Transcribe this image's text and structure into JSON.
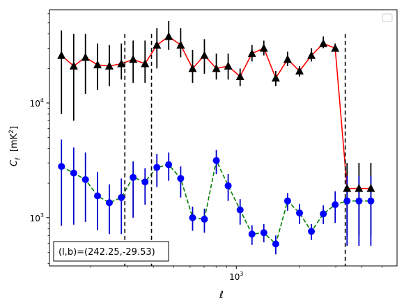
{
  "chart_data": {
    "type": "line",
    "xlabel": "ℓ",
    "ylabel_main": "C",
    "ylabel_sub": "ℓ",
    "ylabel_unit": "[mK",
    "ylabel_unit_sup": "2",
    "ylabel_unit_end": "]",
    "xscale": "log",
    "yscale": "log",
    "xlim": [
      127,
      5900
    ],
    "ylim": [
      380,
      65000
    ],
    "x_ticks": [
      {
        "value": 1000,
        "base": "10",
        "exp": "3"
      }
    ],
    "y_ticks": [
      {
        "value": 1000,
        "base": "10",
        "exp": "3"
      },
      {
        "value": 10000,
        "base": "10",
        "exp": "4"
      }
    ],
    "annotation": "(l,b)=(242.25,-29.53)",
    "legend": "upper right (empty)",
    "vlines": [
      292,
      392,
      3330
    ],
    "vline_range": [
      380,
      40000
    ],
    "series": [
      {
        "color": "#ff0000",
        "marker_color": "#000000",
        "errorbar_color": "#000000",
        "linestyle": "solid",
        "marker": "triangle",
        "x": [
          145,
          166,
          189,
          216,
          246,
          281,
          320,
          365,
          416,
          474,
          541,
          617,
          703,
          802,
          914,
          1043,
          1189,
          1355,
          1546,
          1762,
          2010,
          2292,
          2614,
          2980,
          3398,
          3875,
          4419
        ],
        "y": [
          26000,
          21000,
          25000,
          21500,
          21000,
          22000,
          24000,
          22000,
          32000,
          38000,
          32000,
          20000,
          26000,
          20000,
          21000,
          17000,
          27000,
          30000,
          16500,
          24000,
          19000,
          26000,
          33000,
          30000,
          1800,
          1800,
          1800
        ],
        "yerr_low": [
          8000,
          7000,
          12000,
          13000,
          14000,
          16000,
          15000,
          15000,
          20000,
          29000,
          25000,
          15000,
          18000,
          16000,
          16000,
          14000,
          23000,
          26000,
          14000,
          21000,
          17000,
          23000,
          30000,
          28000,
          700,
          700,
          700
        ],
        "yerr_high": [
          43000,
          40000,
          40000,
          33000,
          32000,
          33000,
          35000,
          35000,
          45000,
          52000,
          45000,
          29000,
          36000,
          27000,
          27000,
          20000,
          32000,
          35000,
          19000,
          28000,
          21000,
          30000,
          38000,
          33000,
          3000,
          3000,
          3000
        ]
      },
      {
        "color": "#008000",
        "marker_color": "#0000ff",
        "errorbar_color": "#0000cc",
        "linestyle": "dashed",
        "marker": "circle",
        "x": [
          145,
          166,
          189,
          216,
          246,
          281,
          320,
          365,
          416,
          474,
          541,
          617,
          703,
          802,
          914,
          1043,
          1189,
          1355,
          1546,
          1762,
          2010,
          2292,
          2614,
          2980,
          3398,
          3875,
          4419
        ],
        "y": [
          2800,
          2450,
          2150,
          1550,
          1350,
          1500,
          2250,
          2050,
          2750,
          2900,
          2200,
          1000,
          970,
          3150,
          1900,
          1170,
          720,
          740,
          590,
          1400,
          1100,
          760,
          1080,
          1300,
          1400,
          1400,
          1400
        ],
        "yerr_low": [
          850,
          870,
          920,
          780,
          720,
          720,
          1000,
          1300,
          1850,
          2100,
          1500,
          770,
          740,
          2400,
          1400,
          870,
          580,
          610,
          480,
          1150,
          880,
          640,
          880,
          900,
          570,
          570,
          570
        ],
        "yerr_high": [
          4800,
          4100,
          3700,
          2500,
          1950,
          2200,
          3100,
          2700,
          3600,
          3700,
          2800,
          1250,
          1200,
          3900,
          2400,
          1450,
          860,
          880,
          700,
          1640,
          1320,
          880,
          1280,
          1700,
          2300,
          2300,
          2300
        ]
      }
    ]
  }
}
